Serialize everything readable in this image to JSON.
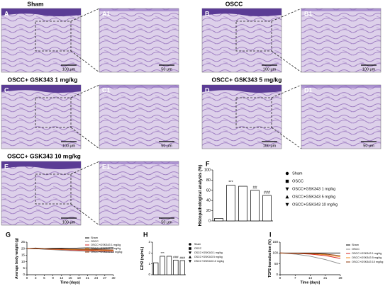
{
  "figure": {
    "titles": [
      "Sham",
      "OSCC",
      "OSCC+ GSK343 1 mg/kg",
      "OSCC+ GSK343 5 mg/kg",
      "OSCC+ GSK343 10 mg/kg"
    ],
    "images": [
      {
        "label": "A",
        "scale": "100 μm"
      },
      {
        "label": "A1",
        "scale": "50 μm"
      },
      {
        "label": "B",
        "scale": "100 μm"
      },
      {
        "label": "B1",
        "scale": "100 μm"
      },
      {
        "label": "C",
        "scale": "100 μm"
      },
      {
        "label": "C1",
        "scale": "50 μm"
      },
      {
        "label": "D",
        "scale": "100 μm"
      },
      {
        "label": "D1",
        "scale": "50 μm"
      },
      {
        "label": "E",
        "scale": "100 μm"
      },
      {
        "label": "E1",
        "scale": "50 μm"
      }
    ]
  },
  "chart_data": [
    {
      "type": "bar",
      "panel": "F",
      "ylabel": "Histopathological analysis (%)",
      "categories": [
        "Sham",
        "OSCC",
        "OSCC+GSK343 1 mg/kg",
        "OSCC+GSK343 5 mg/kg",
        "OSCC+GSK343 10 mg/kg"
      ],
      "values": [
        5,
        70,
        68,
        60,
        50
      ],
      "bar_labels": [
        null,
        "***",
        null,
        "##",
        "###"
      ],
      "ylim": [
        0,
        100
      ],
      "yticks": [
        0,
        20,
        40,
        60,
        80,
        100
      ],
      "color": "#ffffff"
    },
    {
      "type": "line",
      "panel": "G",
      "ylabel": "Average body weight (g)",
      "xlabel": "Time (days)",
      "x": [
        0,
        3,
        6,
        9,
        12,
        15,
        18,
        21,
        24,
        27,
        30
      ],
      "xlim": [
        0,
        30
      ],
      "xticks": [
        0,
        3,
        6,
        9,
        12,
        15,
        18,
        21,
        24,
        27,
        30
      ],
      "ylim": [
        0,
        25
      ],
      "yticks": [
        0,
        5,
        10,
        15,
        20,
        25
      ],
      "series": [
        {
          "name": "Sham",
          "color": "#000000",
          "values": [
            20,
            20.5,
            20,
            20.3,
            20.4,
            20.2,
            20.5,
            20.6,
            20.4,
            20.5,
            20.7
          ]
        },
        {
          "name": "OSCC",
          "color": "#888888",
          "values": [
            20,
            20,
            19.5,
            19.2,
            18.8,
            18.5,
            18.2,
            18,
            17.8,
            17.5,
            17.2
          ]
        },
        {
          "name": "OSCC+GSK343 1 mg/kg",
          "color": "#d62020",
          "values": [
            20,
            20.2,
            19.8,
            19.5,
            19.3,
            19,
            18.8,
            18.6,
            18.4,
            18.2,
            18
          ]
        },
        {
          "name": "OSCC+GSK343 5 mg/kg",
          "color": "#f08a1c",
          "values": [
            20,
            20,
            19.8,
            19.6,
            19.5,
            19.3,
            19.2,
            19,
            18.9,
            18.8,
            18.6
          ]
        },
        {
          "name": "OSCC+GSK343 10 mg/kg",
          "color": "#8b3a0e",
          "values": [
            20,
            20.1,
            19.9,
            19.8,
            19.7,
            19.6,
            19.5,
            19.4,
            19.3,
            19.2,
            19
          ]
        }
      ]
    },
    {
      "type": "bar",
      "panel": "H",
      "ylabel": "EZH2 (ng/mL)",
      "categories": [
        "Sham",
        "OSCC",
        "OSCC+GSK343 1 mg/kg",
        "OSCC+GSK343 5 mg/kg",
        "OSCC+GSK343 10 mg/kg"
      ],
      "values": [
        1.1,
        1.7,
        1.7,
        1.35,
        1.3
      ],
      "bar_labels": [
        null,
        "***",
        null,
        "###",
        "###"
      ],
      "ylim": [
        0,
        3
      ],
      "yticks": [
        0,
        1,
        2,
        3
      ],
      "color": "#ffffff"
    },
    {
      "type": "line",
      "panel": "I",
      "ylabel": "TOP2 transduction (%)",
      "xlabel": "Time (days)",
      "x": [
        0,
        7,
        14,
        21,
        28
      ],
      "xlim": [
        0,
        28
      ],
      "xticks": [
        0,
        7,
        14,
        21,
        28
      ],
      "ylim": [
        0,
        150
      ],
      "yticks": [
        0,
        50,
        100,
        150
      ],
      "series": [
        {
          "name": "Sham",
          "color": "#000000",
          "values": [
            100,
            100,
            100,
            100,
            100
          ]
        },
        {
          "name": "OSCC",
          "color": "#888888",
          "values": [
            100,
            95,
            85,
            70,
            50
          ]
        },
        {
          "name": "OSCC+GSK343 1 mg/kg",
          "color": "#d62020",
          "values": [
            100,
            98,
            95,
            88,
            75
          ]
        },
        {
          "name": "OSCC+GSK343 5 mg/kg",
          "color": "#f08a1c",
          "values": [
            100,
            99,
            97,
            92,
            82
          ]
        },
        {
          "name": "OSCC+GSK343 10 mg/kg",
          "color": "#8b3a0e",
          "values": [
            100,
            99,
            98,
            95,
            88
          ]
        }
      ]
    }
  ]
}
